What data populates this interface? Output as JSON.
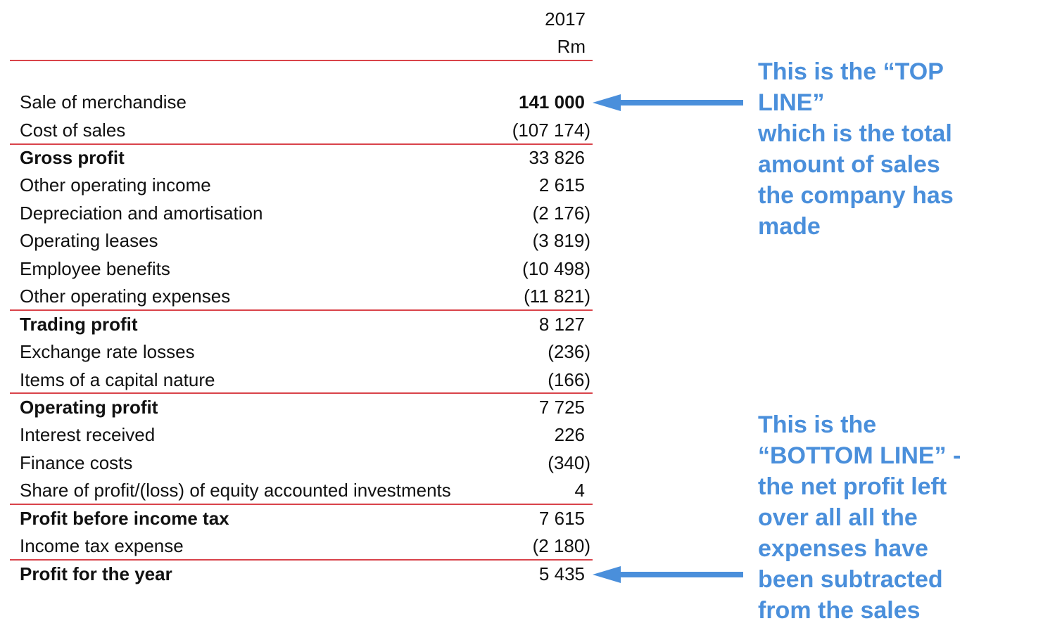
{
  "header": {
    "year": "2017",
    "unit": "Rm"
  },
  "rows": [
    {
      "label": "Sale of merchandise",
      "value": "141 000"
    },
    {
      "label": "Cost of sales",
      "value": "(107 174)"
    },
    {
      "label": "Gross profit",
      "value": "33 826"
    },
    {
      "label": "Other operating income",
      "value": "2 615"
    },
    {
      "label": "Depreciation and amortisation",
      "value": "(2 176)"
    },
    {
      "label": "Operating leases",
      "value": "(3 819)"
    },
    {
      "label": "Employee benefits",
      "value": "(10 498)"
    },
    {
      "label": "Other operating expenses",
      "value": "(11 821)"
    },
    {
      "label": "Trading profit",
      "value": "8 127"
    },
    {
      "label": "Exchange rate losses",
      "value": "(236)"
    },
    {
      "label": "Items of a capital nature",
      "value": "(166)"
    },
    {
      "label": "Operating profit",
      "value": "7 725"
    },
    {
      "label": "Interest received",
      "value": "226"
    },
    {
      "label": "Finance costs",
      "value": "(340)"
    },
    {
      "label": "Share of profit/(loss) of equity accounted investments",
      "value": "4"
    },
    {
      "label": "Profit before income tax",
      "value": "7 615"
    },
    {
      "label": "Income tax expense",
      "value": "(2 180)"
    },
    {
      "label": "Profit for the year",
      "value": "5 435"
    }
  ],
  "annotations": {
    "top_line": [
      "This is the “TOP",
      "LINE”",
      "which is the total",
      "amount of sales",
      "the company has",
      "made"
    ],
    "bottom_line": [
      "This is the",
      "“BOTTOM LINE” -",
      "the net profit left",
      "over all all the",
      "expenses have",
      "been subtracted",
      "from the sales"
    ]
  },
  "colors": {
    "rule": "#d9434a",
    "annotation": "#4a8fdb",
    "text": "#111111"
  },
  "icons": [
    "arrow-left-icon",
    "arrow-left-icon"
  ]
}
